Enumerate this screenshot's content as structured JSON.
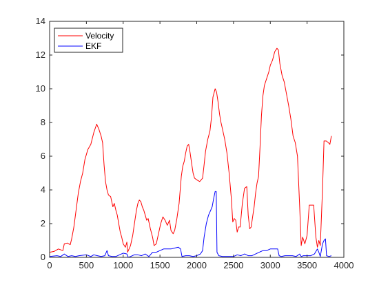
{
  "chart_data": {
    "type": "line",
    "xlim": [
      0,
      4000
    ],
    "ylim": [
      0,
      14
    ],
    "x_ticks": [
      0,
      500,
      1000,
      1500,
      2000,
      2500,
      3000,
      3500,
      4000
    ],
    "y_ticks": [
      0,
      2,
      4,
      6,
      8,
      10,
      12,
      14
    ],
    "grid": false,
    "legend_position": "top-left",
    "series": [
      {
        "name": "Velocity",
        "color": "#ff0000",
        "points": [
          [
            0,
            0.3
          ],
          [
            60,
            0.35
          ],
          [
            120,
            0.5
          ],
          [
            180,
            0.4
          ],
          [
            200,
            0.8
          ],
          [
            240,
            0.85
          ],
          [
            280,
            0.75
          ],
          [
            300,
            1.1
          ],
          [
            330,
            1.8
          ],
          [
            360,
            2.8
          ],
          [
            390,
            3.8
          ],
          [
            420,
            4.5
          ],
          [
            450,
            5.0
          ],
          [
            480,
            5.8
          ],
          [
            520,
            6.4
          ],
          [
            560,
            6.7
          ],
          [
            600,
            7.4
          ],
          [
            640,
            7.9
          ],
          [
            670,
            7.6
          ],
          [
            700,
            7.2
          ],
          [
            720,
            6.8
          ],
          [
            740,
            5.5
          ],
          [
            760,
            4.5
          ],
          [
            780,
            4.0
          ],
          [
            800,
            3.7
          ],
          [
            830,
            3.6
          ],
          [
            860,
            3.0
          ],
          [
            880,
            3.2
          ],
          [
            900,
            2.8
          ],
          [
            920,
            2.5
          ],
          [
            940,
            2.0
          ],
          [
            960,
            1.5
          ],
          [
            980,
            1.2
          ],
          [
            1000,
            0.8
          ],
          [
            1030,
            0.6
          ],
          [
            1050,
            0.9
          ],
          [
            1060,
            0.3
          ],
          [
            1100,
            0.7
          ],
          [
            1130,
            1.3
          ],
          [
            1160,
            2.2
          ],
          [
            1180,
            2.8
          ],
          [
            1200,
            3.2
          ],
          [
            1220,
            3.4
          ],
          [
            1240,
            3.3
          ],
          [
            1260,
            3.0
          ],
          [
            1280,
            2.8
          ],
          [
            1300,
            2.5
          ],
          [
            1320,
            2.2
          ],
          [
            1340,
            2.3
          ],
          [
            1370,
            1.7
          ],
          [
            1400,
            1.2
          ],
          [
            1420,
            0.7
          ],
          [
            1450,
            0.8
          ],
          [
            1480,
            1.4
          ],
          [
            1510,
            2.0
          ],
          [
            1540,
            2.4
          ],
          [
            1570,
            2.2
          ],
          [
            1600,
            1.9
          ],
          [
            1630,
            2.2
          ],
          [
            1650,
            1.6
          ],
          [
            1680,
            1.4
          ],
          [
            1700,
            1.6
          ],
          [
            1730,
            2.3
          ],
          [
            1760,
            3.2
          ],
          [
            1790,
            4.8
          ],
          [
            1810,
            5.4
          ],
          [
            1830,
            5.7
          ],
          [
            1850,
            6.2
          ],
          [
            1870,
            6.6
          ],
          [
            1890,
            6.7
          ],
          [
            1910,
            6.2
          ],
          [
            1930,
            5.6
          ],
          [
            1950,
            5.0
          ],
          [
            1970,
            4.7
          ],
          [
            2000,
            4.6
          ],
          [
            2040,
            4.5
          ],
          [
            2080,
            4.7
          ],
          [
            2100,
            5.5
          ],
          [
            2120,
            6.3
          ],
          [
            2150,
            7.0
          ],
          [
            2180,
            7.5
          ],
          [
            2200,
            8.3
          ],
          [
            2220,
            9.5
          ],
          [
            2250,
            10.0
          ],
          [
            2270,
            9.8
          ],
          [
            2290,
            9.2
          ],
          [
            2310,
            8.5
          ],
          [
            2330,
            8.0
          ],
          [
            2350,
            7.6
          ],
          [
            2380,
            7.0
          ],
          [
            2410,
            6.2
          ],
          [
            2440,
            5.0
          ],
          [
            2470,
            3.5
          ],
          [
            2490,
            2.1
          ],
          [
            2510,
            2.3
          ],
          [
            2530,
            2.2
          ],
          [
            2550,
            1.5
          ],
          [
            2570,
            1.8
          ],
          [
            2590,
            1.8
          ],
          [
            2620,
            3.2
          ],
          [
            2650,
            4.1
          ],
          [
            2680,
            4.2
          ],
          [
            2700,
            2.5
          ],
          [
            2720,
            1.7
          ],
          [
            2740,
            1.8
          ],
          [
            2760,
            2.4
          ],
          [
            2780,
            3.0
          ],
          [
            2800,
            3.8
          ],
          [
            2820,
            4.4
          ],
          [
            2840,
            4.8
          ],
          [
            2860,
            6.5
          ],
          [
            2880,
            8.4
          ],
          [
            2900,
            9.6
          ],
          [
            2920,
            10.2
          ],
          [
            2950,
            10.6
          ],
          [
            2980,
            11.0
          ],
          [
            3000,
            11.4
          ],
          [
            3030,
            11.7
          ],
          [
            3060,
            12.2
          ],
          [
            3090,
            12.4
          ],
          [
            3110,
            12.3
          ],
          [
            3130,
            11.5
          ],
          [
            3160,
            10.8
          ],
          [
            3190,
            10.4
          ],
          [
            3220,
            9.7
          ],
          [
            3250,
            9.0
          ],
          [
            3280,
            8.2
          ],
          [
            3310,
            7.2
          ],
          [
            3340,
            6.8
          ],
          [
            3370,
            6.0
          ],
          [
            3400,
            3.0
          ],
          [
            3420,
            0.7
          ],
          [
            3440,
            1.2
          ],
          [
            3470,
            0.8
          ],
          [
            3500,
            1.3
          ],
          [
            3530,
            3.1
          ],
          [
            3560,
            3.1
          ],
          [
            3590,
            3.1
          ],
          [
            3620,
            1.2
          ],
          [
            3640,
            0.6
          ],
          [
            3660,
            1.0
          ],
          [
            3680,
            0.7
          ],
          [
            3710,
            4.0
          ],
          [
            3730,
            6.9
          ],
          [
            3760,
            6.9
          ],
          [
            3790,
            6.8
          ],
          [
            3810,
            6.7
          ],
          [
            3830,
            7.2
          ]
        ]
      },
      {
        "name": "EKF",
        "color": "#0000ff",
        "points": [
          [
            0,
            0.05
          ],
          [
            100,
            0.1
          ],
          [
            150,
            0.05
          ],
          [
            200,
            0.2
          ],
          [
            250,
            0.05
          ],
          [
            300,
            0.1
          ],
          [
            350,
            0.05
          ],
          [
            400,
            0.1
          ],
          [
            500,
            0.15
          ],
          [
            560,
            0.05
          ],
          [
            600,
            0.15
          ],
          [
            650,
            0.1
          ],
          [
            700,
            0.05
          ],
          [
            750,
            0.1
          ],
          [
            780,
            0.4
          ],
          [
            800,
            0.1
          ],
          [
            850,
            0.05
          ],
          [
            900,
            0.05
          ],
          [
            950,
            0.15
          ],
          [
            1000,
            0.25
          ],
          [
            1050,
            0.2
          ],
          [
            1070,
            0.0
          ],
          [
            1100,
            0.05
          ],
          [
            1150,
            0.15
          ],
          [
            1200,
            0.15
          ],
          [
            1250,
            0.1
          ],
          [
            1300,
            0.2
          ],
          [
            1350,
            0.05
          ],
          [
            1400,
            0.3
          ],
          [
            1450,
            0.3
          ],
          [
            1500,
            0.4
          ],
          [
            1550,
            0.5
          ],
          [
            1600,
            0.5
          ],
          [
            1650,
            0.5
          ],
          [
            1700,
            0.55
          ],
          [
            1750,
            0.6
          ],
          [
            1780,
            0.5
          ],
          [
            1800,
            0.05
          ],
          [
            1850,
            0.1
          ],
          [
            1900,
            0.1
          ],
          [
            1950,
            0.05
          ],
          [
            2000,
            0.1
          ],
          [
            2050,
            0.2
          ],
          [
            2080,
            0.4
          ],
          [
            2100,
            1.2
          ],
          [
            2130,
            2.0
          ],
          [
            2160,
            2.5
          ],
          [
            2190,
            2.8
          ],
          [
            2210,
            3.0
          ],
          [
            2230,
            3.5
          ],
          [
            2250,
            3.9
          ],
          [
            2265,
            3.9
          ],
          [
            2275,
            0.3
          ],
          [
            2300,
            0.1
          ],
          [
            2350,
            0.05
          ],
          [
            2400,
            0.05
          ],
          [
            2450,
            0.05
          ],
          [
            2500,
            0.05
          ],
          [
            2550,
            0.15
          ],
          [
            2600,
            0.1
          ],
          [
            2650,
            0.2
          ],
          [
            2700,
            0.1
          ],
          [
            2750,
            0.1
          ],
          [
            2800,
            0.2
          ],
          [
            2850,
            0.3
          ],
          [
            2900,
            0.4
          ],
          [
            2950,
            0.4
          ],
          [
            3000,
            0.5
          ],
          [
            3050,
            0.5
          ],
          [
            3100,
            0.5
          ],
          [
            3120,
            0.1
          ],
          [
            3150,
            0.05
          ],
          [
            3200,
            0.1
          ],
          [
            3250,
            0.1
          ],
          [
            3300,
            0.1
          ],
          [
            3350,
            0.05
          ],
          [
            3400,
            0.2
          ],
          [
            3420,
            0.05
          ],
          [
            3450,
            0.1
          ],
          [
            3500,
            0.1
          ],
          [
            3550,
            0.1
          ],
          [
            3600,
            0.2
          ],
          [
            3640,
            0.5
          ],
          [
            3660,
            0.3
          ],
          [
            3680,
            0.05
          ],
          [
            3710,
            0.8
          ],
          [
            3730,
            1.0
          ],
          [
            3750,
            1.1
          ],
          [
            3765,
            0.1
          ],
          [
            3800,
            0.05
          ],
          [
            3830,
            0.1
          ]
        ]
      }
    ]
  }
}
